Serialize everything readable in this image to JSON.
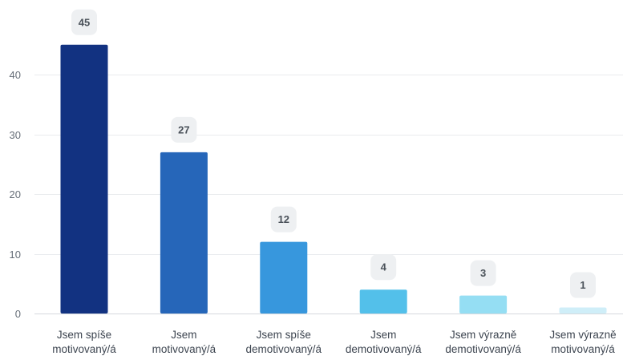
{
  "chart_data": {
    "type": "bar",
    "categories": [
      [
        "Jsem spíše",
        "motivovaný/á"
      ],
      [
        "Jsem",
        "motivovaný/á"
      ],
      [
        "Jsem spíše",
        "demotivovaný/á"
      ],
      [
        "Jsem",
        "demotivovaný/á"
      ],
      [
        "Jsem výrazně",
        "demotivovaný/á"
      ],
      [
        "Jsem výrazně",
        "motivovaný/á"
      ]
    ],
    "values": [
      45,
      27,
      12,
      4,
      3,
      1
    ],
    "colors": [
      "#123281",
      "#2666b9",
      "#3797dd",
      "#53c0ea",
      "#95def3",
      "#cfeef8"
    ],
    "ylim": [
      0,
      48
    ],
    "yticks": [
      0,
      10,
      20,
      30,
      40
    ],
    "grid": true,
    "title": "",
    "xlabel": "",
    "ylabel": ""
  }
}
